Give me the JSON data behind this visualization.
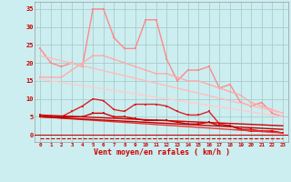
{
  "bg_color": "#cceef0",
  "grid_color": "#aacccc",
  "xlabel": "Vent moyen/en rafales ( km/h )",
  "xlabel_color": "#cc0000",
  "x_ticks": [
    0,
    1,
    2,
    3,
    4,
    5,
    6,
    7,
    8,
    9,
    10,
    11,
    12,
    13,
    14,
    15,
    16,
    17,
    18,
    19,
    20,
    21,
    22,
    23
  ],
  "ylim": [
    -2,
    37
  ],
  "yticks": [
    0,
    5,
    10,
    15,
    20,
    25,
    30,
    35
  ],
  "tick_color": "#cc0000",
  "lines": [
    {
      "name": "line1_salmon_jagged_high",
      "color": "#ff8888",
      "lw": 1.0,
      "marker": "s",
      "markersize": 2.0,
      "linestyle": "-",
      "data_x": [
        0,
        1,
        2,
        3,
        4,
        5,
        6,
        7,
        8,
        9,
        10,
        11,
        12,
        13,
        14,
        15,
        16,
        17,
        18,
        19,
        20,
        21,
        22,
        23
      ],
      "data_y": [
        24,
        20,
        19,
        20,
        19,
        35,
        35,
        27,
        24,
        24,
        32,
        32,
        21,
        15,
        18,
        18,
        19,
        13,
        14,
        9,
        8,
        9,
        6,
        5
      ]
    },
    {
      "name": "line2_salmon_medium_jagged",
      "color": "#ffaaaa",
      "lw": 1.0,
      "marker": "s",
      "markersize": 2.0,
      "linestyle": "-",
      "data_x": [
        0,
        1,
        2,
        3,
        4,
        5,
        6,
        7,
        8,
        9,
        10,
        11,
        12,
        13,
        14,
        15,
        16,
        17,
        18,
        19,
        20,
        21,
        22,
        23
      ],
      "data_y": [
        16,
        16,
        16,
        18,
        20,
        22,
        22,
        21,
        20,
        19,
        18,
        17,
        17,
        16,
        15,
        15,
        14,
        13,
        12,
        11,
        9,
        8,
        7,
        6
      ]
    },
    {
      "name": "line3_light_slope1",
      "color": "#ffbbbb",
      "lw": 1.0,
      "marker": null,
      "linestyle": "-",
      "data_x": [
        0,
        23
      ],
      "data_y": [
        22,
        6
      ]
    },
    {
      "name": "line4_light_slope2",
      "color": "#ffcccc",
      "lw": 1.0,
      "marker": null,
      "linestyle": "-",
      "data_x": [
        0,
        23
      ],
      "data_y": [
        15.5,
        5
      ]
    },
    {
      "name": "line5_red_medium_jagged",
      "color": "#dd2222",
      "lw": 1.0,
      "marker": "s",
      "markersize": 2.0,
      "linestyle": "-",
      "data_x": [
        0,
        1,
        2,
        3,
        4,
        5,
        6,
        7,
        8,
        9,
        10,
        11,
        12,
        13,
        14,
        15,
        16,
        17,
        18,
        19,
        20,
        21,
        22,
        23
      ],
      "data_y": [
        5.5,
        5,
        5,
        6.5,
        8,
        10,
        9.5,
        7,
        6.5,
        8.5,
        8.5,
        8.5,
        8,
        6.5,
        5.5,
        5.5,
        6.5,
        3,
        2.5,
        1.5,
        1.5,
        1,
        1,
        0.5
      ]
    },
    {
      "name": "line6_red_low_jagged",
      "color": "#cc0000",
      "lw": 1.0,
      "marker": "s",
      "markersize": 2.0,
      "linestyle": "-",
      "data_x": [
        0,
        1,
        2,
        3,
        4,
        5,
        6,
        7,
        8,
        9,
        10,
        11,
        12,
        13,
        14,
        15,
        16,
        17,
        18,
        19,
        20,
        21,
        22,
        23
      ],
      "data_y": [
        5,
        5,
        5,
        5,
        5,
        6,
        6,
        5,
        5,
        4.5,
        4,
        4,
        4,
        3.5,
        3,
        3,
        3.5,
        2.5,
        2.5,
        1.5,
        1,
        1,
        1,
        0.5
      ]
    },
    {
      "name": "line7_red_slope1",
      "color": "#cc0000",
      "lw": 1.0,
      "marker": null,
      "linestyle": "-",
      "data_x": [
        0,
        23
      ],
      "data_y": [
        5.5,
        2.5
      ]
    },
    {
      "name": "line8_red_slope2",
      "color": "#ee3333",
      "lw": 1.0,
      "marker": null,
      "linestyle": "-",
      "data_x": [
        0,
        23
      ],
      "data_y": [
        5,
        0.5
      ]
    },
    {
      "name": "line9_red_slope3",
      "color": "#bb0000",
      "lw": 1.0,
      "marker": null,
      "linestyle": "-",
      "data_x": [
        0,
        23
      ],
      "data_y": [
        5,
        1.5
      ]
    },
    {
      "name": "line10_bottom_dashes",
      "color": "#cc0000",
      "lw": 0.8,
      "marker": "4",
      "markersize": 3.0,
      "linestyle": "--",
      "data_x": [
        0,
        1,
        2,
        3,
        4,
        5,
        6,
        7,
        8,
        9,
        10,
        11,
        12,
        13,
        14,
        15,
        16,
        17,
        18,
        19,
        20,
        21,
        22,
        23
      ],
      "data_y": [
        -1,
        -1,
        -1,
        -1,
        -1,
        -1,
        -1,
        -1,
        -1,
        -1,
        -1,
        -1,
        -1,
        -1,
        -1,
        -1,
        -1,
        -1,
        -1,
        -1,
        -1,
        -1,
        -1,
        -1
      ]
    }
  ]
}
